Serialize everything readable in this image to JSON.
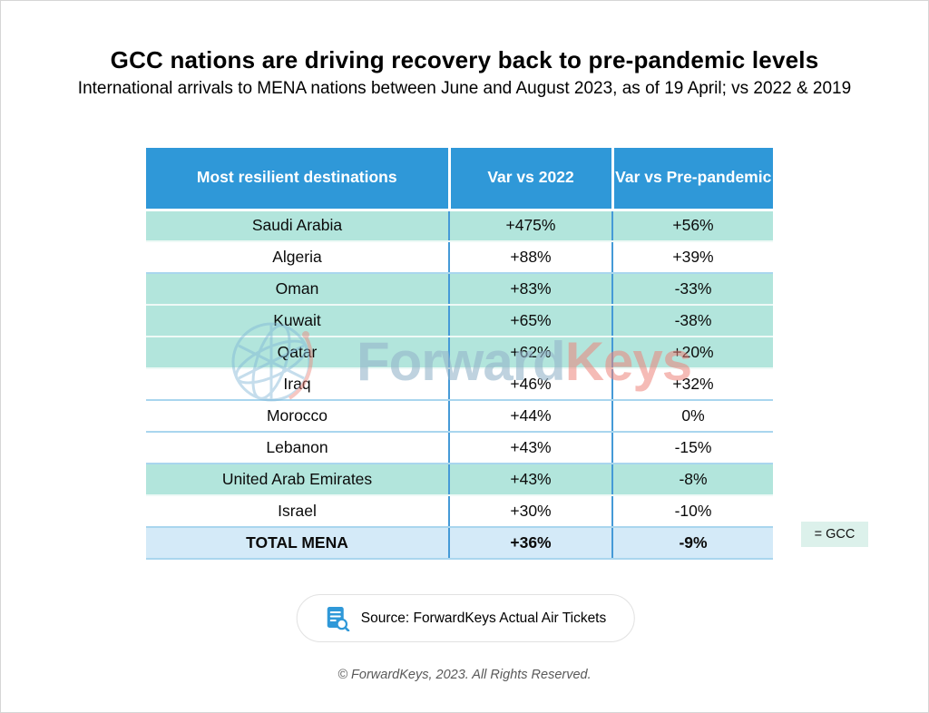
{
  "page": {
    "title": "GCC nations are driving recovery back to pre-pandemic levels",
    "subtitle": "International arrivals to MENA nations between June and August 2023, as of 19 April; vs 2022 & 2019",
    "footer": "© ForwardKeys, 2023. All Rights Reserved."
  },
  "table": {
    "columns": [
      "Most resilient destinations",
      "Var vs 2022",
      "Var vs Pre-pandemic"
    ],
    "rows": [
      {
        "destination": "Saudi Arabia",
        "var_vs_2022": "+475%",
        "var_vs_prepandemic": "+56%",
        "gcc": true
      },
      {
        "destination": "Algeria",
        "var_vs_2022": "+88%",
        "var_vs_prepandemic": "+39%",
        "gcc": false
      },
      {
        "destination": "Oman",
        "var_vs_2022": "+83%",
        "var_vs_prepandemic": "-33%",
        "gcc": true
      },
      {
        "destination": "Kuwait",
        "var_vs_2022": "+65%",
        "var_vs_prepandemic": "-38%",
        "gcc": true
      },
      {
        "destination": "Qatar",
        "var_vs_2022": "+62%",
        "var_vs_prepandemic": "+20%",
        "gcc": true
      },
      {
        "destination": "Iraq",
        "var_vs_2022": "+46%",
        "var_vs_prepandemic": "+32%",
        "gcc": false
      },
      {
        "destination": "Morocco",
        "var_vs_2022": "+44%",
        "var_vs_prepandemic": "0%",
        "gcc": false
      },
      {
        "destination": "Lebanon",
        "var_vs_2022": "+43%",
        "var_vs_prepandemic": "-15%",
        "gcc": false
      },
      {
        "destination": "United Arab Emirates",
        "var_vs_2022": "+43%",
        "var_vs_prepandemic": "-8%",
        "gcc": true
      },
      {
        "destination": "Israel",
        "var_vs_2022": "+30%",
        "var_vs_prepandemic": "-10%",
        "gcc": false
      }
    ],
    "total_row": {
      "destination": "TOTAL MENA",
      "var_vs_2022": "+36%",
      "var_vs_prepandemic": "-9%"
    }
  },
  "legend": {
    "label": "= GCC"
  },
  "source": {
    "label": "Source: ForwardKeys Actual Air Tickets",
    "icon": "document-search-icon"
  },
  "watermark": {
    "icon": "globe-icon",
    "text_primary": "Forward",
    "text_secondary": "Keys"
  },
  "colors": {
    "header_bg": "#2F98D8",
    "gcc_row_bg": "#B2E5DC",
    "total_row_bg": "#D4EAF8",
    "legend_bg": "#DCF1EB",
    "row_border": "#A9D6EE",
    "column_border": "#459AD7",
    "watermark_blue": "#94B4CA",
    "watermark_red": "#EC847A"
  },
  "chart_data": {
    "type": "table",
    "title": "GCC nations are driving recovery back to pre-pandemic levels",
    "subtitle": "International arrivals to MENA nations between June and August 2023, as of 19 April; vs 2022 & 2019",
    "columns": [
      "Most resilient destinations",
      "Var vs 2022",
      "Var vs Pre-pandemic"
    ],
    "rows": [
      [
        "Saudi Arabia",
        "+475%",
        "+56%"
      ],
      [
        "Algeria",
        "+88%",
        "+39%"
      ],
      [
        "Oman",
        "+83%",
        "-33%"
      ],
      [
        "Kuwait",
        "+65%",
        "-38%"
      ],
      [
        "Qatar",
        "+62%",
        "+20%"
      ],
      [
        "Iraq",
        "+46%",
        "+32%"
      ],
      [
        "Morocco",
        "+44%",
        "0%"
      ],
      [
        "Lebanon",
        "+43%",
        "-15%"
      ],
      [
        "United Arab Emirates",
        "+43%",
        "-8%"
      ],
      [
        "Israel",
        "+30%",
        "-10%"
      ],
      [
        "TOTAL MENA",
        "+36%",
        "-9%"
      ]
    ],
    "highlighted_rows_gcc": [
      "Saudi Arabia",
      "Oman",
      "Kuwait",
      "Qatar",
      "United Arab Emirates"
    ],
    "legend": "= GCC",
    "source": "Source: ForwardKeys Actual Air Tickets",
    "footnote": "© ForwardKeys, 2023. All Rights Reserved."
  }
}
